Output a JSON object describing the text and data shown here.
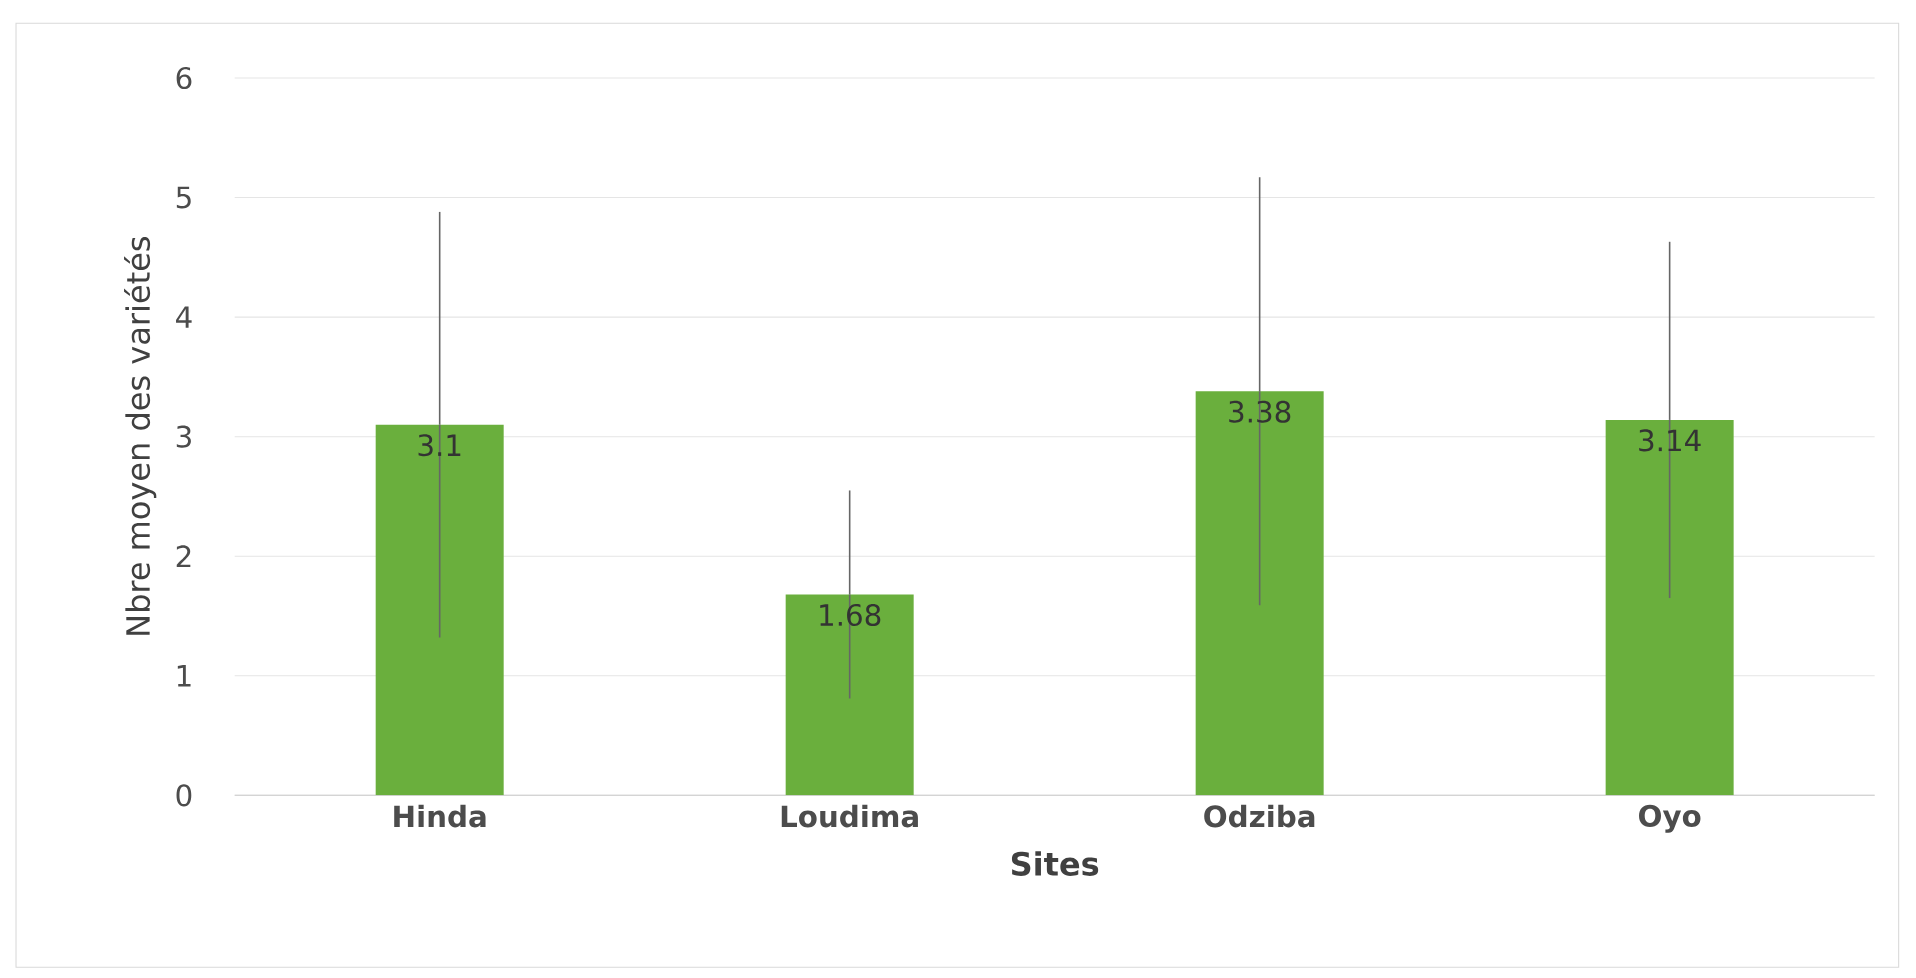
{
  "chart_data": {
    "type": "bar",
    "xlabel": "Sites",
    "ylabel": "Nbre  moyen des variétés",
    "categories": [
      "Hinda",
      "Loudima",
      "Odziba",
      "Oyo"
    ],
    "values": [
      3.1,
      1.68,
      3.38,
      3.14
    ],
    "errors": [
      1.78,
      0.87,
      1.79,
      1.49
    ],
    "color": "#6aaf3d",
    "ylim": [
      0,
      6
    ],
    "yticks": [
      0,
      1,
      2,
      3,
      4,
      5,
      6
    ],
    "grid": "y",
    "data_labels": true
  }
}
